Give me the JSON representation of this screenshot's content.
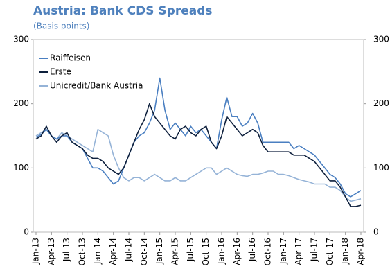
{
  "chart_data": {
    "type": "line",
    "title": "Austria: Bank CDS Spreads",
    "subtitle": "(Basis points)",
    "categories": [
      "Jan-13",
      null,
      null,
      "Apr-13",
      null,
      null,
      "Jul-13",
      null,
      null,
      "Oct-13",
      null,
      null,
      "Jan-14",
      null,
      null,
      "Apr-14",
      null,
      null,
      "Jul-14",
      null,
      null,
      "Oct-14",
      null,
      null,
      "Jan-15",
      null,
      null,
      "Apr-15",
      null,
      null,
      "Jul-15",
      null,
      null,
      "Oct-15",
      null,
      null,
      "Jan-16",
      null,
      null,
      "Apr-16",
      null,
      null,
      "Jul-16",
      null,
      null,
      "Oct-16",
      null,
      null,
      "Jan-17",
      null,
      null,
      "Apr-17",
      null,
      null,
      "Jul-17",
      null,
      null,
      "Oct-17",
      null,
      null,
      "Jan-18",
      null,
      null,
      "Apr-18"
    ],
    "series": [
      {
        "name": "Raiffeisen",
        "color": "#4a7fc1",
        "values": [
          148,
          152,
          160,
          150,
          145,
          150,
          150,
          140,
          135,
          130,
          115,
          100,
          100,
          95,
          85,
          75,
          80,
          100,
          120,
          140,
          150,
          155,
          170,
          190,
          240,
          190,
          160,
          170,
          160,
          150,
          165,
          155,
          160,
          150,
          140,
          130,
          175,
          210,
          180,
          180,
          165,
          170,
          185,
          170,
          140,
          140,
          140,
          140,
          140,
          140,
          130,
          135,
          130,
          125,
          120,
          110,
          100,
          90,
          85,
          75,
          60,
          55,
          60,
          65
        ]
      },
      {
        "name": "Erste",
        "color": "#0d1f3c",
        "values": [
          145,
          150,
          165,
          150,
          140,
          150,
          155,
          140,
          135,
          130,
          120,
          115,
          115,
          110,
          100,
          95,
          90,
          100,
          120,
          140,
          160,
          175,
          200,
          180,
          170,
          160,
          150,
          145,
          160,
          165,
          155,
          150,
          160,
          165,
          140,
          130,
          150,
          180,
          170,
          160,
          150,
          155,
          160,
          155,
          135,
          125,
          125,
          125,
          125,
          125,
          120,
          120,
          120,
          115,
          110,
          100,
          90,
          80,
          80,
          70,
          55,
          40,
          40,
          42
        ]
      },
      {
        "name": "Unicredit/Bank Austria",
        "color": "#95b3d7",
        "values": [
          150,
          155,
          160,
          150,
          145,
          155,
          150,
          145,
          140,
          135,
          130,
          125,
          160,
          155,
          150,
          120,
          100,
          85,
          80,
          85,
          85,
          80,
          85,
          90,
          85,
          80,
          80,
          85,
          80,
          80,
          85,
          90,
          95,
          100,
          100,
          90,
          95,
          100,
          95,
          90,
          88,
          87,
          90,
          90,
          92,
          95,
          95,
          90,
          90,
          88,
          85,
          82,
          80,
          78,
          75,
          75,
          75,
          70,
          70,
          65,
          55,
          48,
          50,
          52
        ]
      }
    ],
    "ylim": [
      0,
      300
    ],
    "yticks": [
      0,
      100,
      200,
      300
    ],
    "y2lim": [
      0,
      300
    ],
    "y2ticks": [
      0,
      100,
      200,
      300
    ],
    "legend": "top-left"
  }
}
